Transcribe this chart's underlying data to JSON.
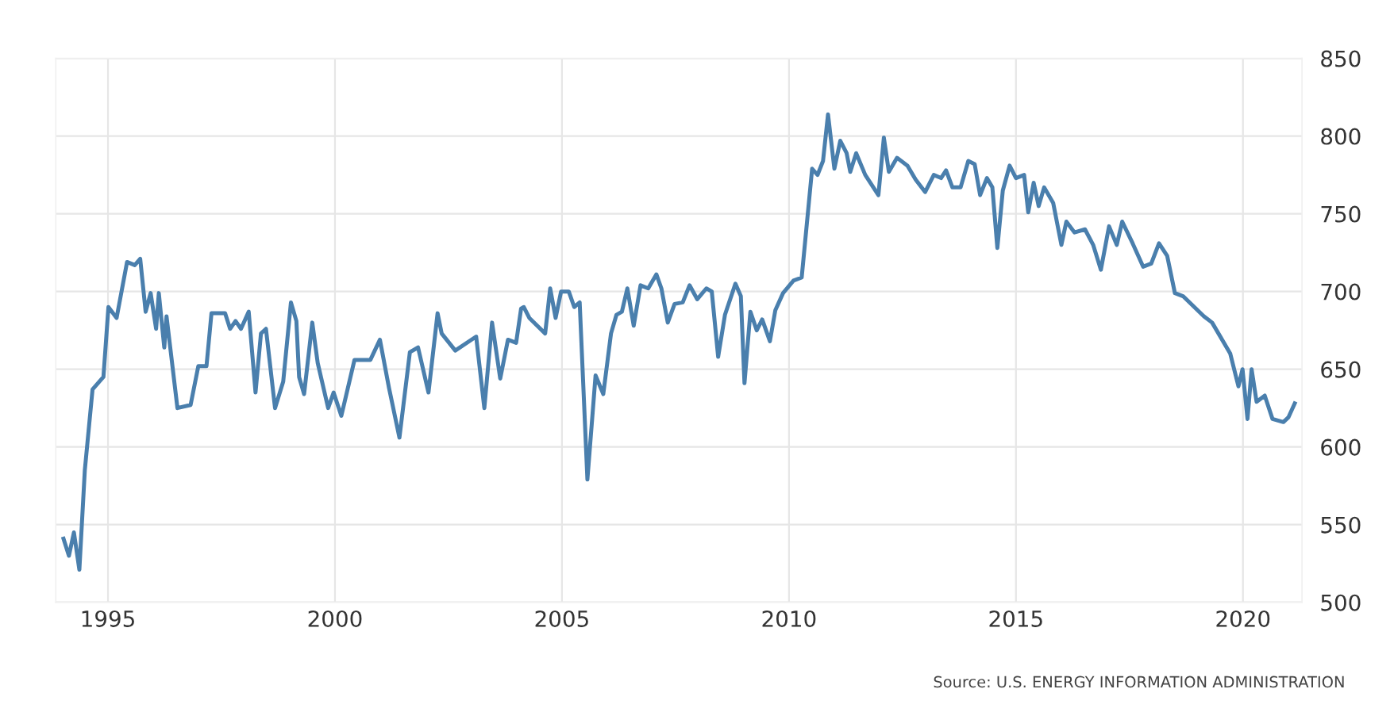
{
  "chart_data": {
    "type": "line",
    "x": [
      1994.02,
      1994.14,
      1994.25,
      1994.37,
      1994.49,
      1994.66,
      1994.9,
      1995.01,
      1995.19,
      1995.42,
      1995.59,
      1995.71,
      1995.83,
      1995.94,
      1996.06,
      1996.12,
      1996.24,
      1996.29,
      1996.53,
      1996.82,
      1996.99,
      1997.17,
      1997.28,
      1997.58,
      1997.69,
      1997.81,
      1997.93,
      1998.1,
      1998.25,
      1998.37,
      1998.48,
      1998.68,
      1998.86,
      1999.03,
      1999.15,
      1999.21,
      1999.32,
      1999.5,
      1999.62,
      1999.85,
      1999.97,
      2000.14,
      2000.43,
      2000.78,
      2000.99,
      2001.19,
      2001.42,
      2001.65,
      2001.83,
      2002.06,
      2002.26,
      2002.35,
      2002.65,
      2003.11,
      2003.29,
      2003.46,
      2003.64,
      2003.81,
      2003.99,
      2004.1,
      2004.16,
      2004.28,
      2004.63,
      2004.74,
      2004.86,
      2004.98,
      2005.15,
      2005.27,
      2005.39,
      2005.56,
      2005.74,
      2005.91,
      2006.08,
      2006.2,
      2006.32,
      2006.44,
      2006.58,
      2006.73,
      2006.9,
      2007.08,
      2007.19,
      2007.33,
      2007.48,
      2007.66,
      2007.81,
      2007.98,
      2008.18,
      2008.3,
      2008.44,
      2008.59,
      2008.82,
      2008.94,
      2009.02,
      2009.15,
      2009.29,
      2009.41,
      2009.58,
      2009.7,
      2009.87,
      2010.1,
      2010.28,
      2010.51,
      2010.63,
      2010.75,
      2010.86,
      2011.0,
      2011.13,
      2011.27,
      2011.35,
      2011.48,
      2011.68,
      2011.97,
      2012.09,
      2012.2,
      2012.38,
      2012.61,
      2012.79,
      2013.0,
      2013.19,
      2013.35,
      2013.46,
      2013.6,
      2013.78,
      2013.95,
      2014.09,
      2014.21,
      2014.36,
      2014.48,
      2014.59,
      2014.71,
      2014.86,
      2015.0,
      2015.18,
      2015.27,
      2015.39,
      2015.5,
      2015.62,
      2015.82,
      2016.0,
      2016.11,
      2016.29,
      2016.52,
      2016.7,
      2016.87,
      2017.05,
      2017.22,
      2017.34,
      2017.57,
      2017.8,
      2017.98,
      2018.15,
      2018.33,
      2018.5,
      2018.68,
      2019.14,
      2019.32,
      2019.72,
      2019.9,
      2019.99,
      2020.1,
      2020.19,
      2020.3,
      2020.48,
      2020.65,
      2020.89,
      2021.0,
      2021.14
    ],
    "series": [
      {
        "color": "#4a7fad",
        "values": [
          541,
          530,
          545,
          521,
          585,
          637,
          645,
          690,
          683,
          719,
          717,
          721,
          687,
          699,
          676,
          699,
          664,
          684,
          625,
          627,
          652,
          652,
          686,
          686,
          676,
          681,
          676,
          687,
          635,
          673,
          676,
          625,
          642,
          693,
          681,
          645,
          634,
          680,
          654,
          625,
          635,
          620,
          656,
          656,
          669,
          638,
          606,
          661,
          664,
          635,
          686,
          673,
          662,
          671,
          625,
          680,
          644,
          669,
          667,
          689,
          690,
          683,
          673,
          702,
          683,
          700,
          700,
          690,
          693,
          579,
          646,
          634,
          673,
          685,
          687,
          702,
          678,
          704,
          702,
          711,
          702,
          680,
          692,
          693,
          704,
          695,
          702,
          700,
          658,
          685,
          705,
          697,
          641,
          687,
          675,
          682,
          668,
          688,
          699,
          707,
          709,
          779,
          775,
          784,
          814,
          779,
          797,
          789,
          777,
          789,
          775,
          762,
          799,
          777,
          786,
          781,
          772,
          764,
          775,
          773,
          778,
          767,
          767,
          784,
          782,
          762,
          773,
          767,
          728,
          765,
          781,
          773,
          775,
          751,
          770,
          755,
          767,
          757,
          730,
          745,
          738,
          740,
          730,
          714,
          742,
          730,
          745,
          731,
          716,
          718,
          731,
          723,
          699,
          697,
          684,
          680,
          660,
          639,
          650,
          618,
          650,
          629,
          633,
          618,
          616,
          619,
          628
        ]
      }
    ],
    "xlim": [
      1993.85,
      2021.3
    ],
    "xticks": [
      1995,
      2000,
      2005,
      2010,
      2015,
      2020
    ],
    "ylim": [
      500,
      850
    ],
    "yticks": [
      500,
      550,
      600,
      650,
      700,
      750,
      800,
      850
    ],
    "grid": true,
    "marker": "none",
    "line_style": "solid",
    "annotations": [
      "Source: U.S. ENERGY INFORMATION ADMINISTRATION"
    ]
  }
}
